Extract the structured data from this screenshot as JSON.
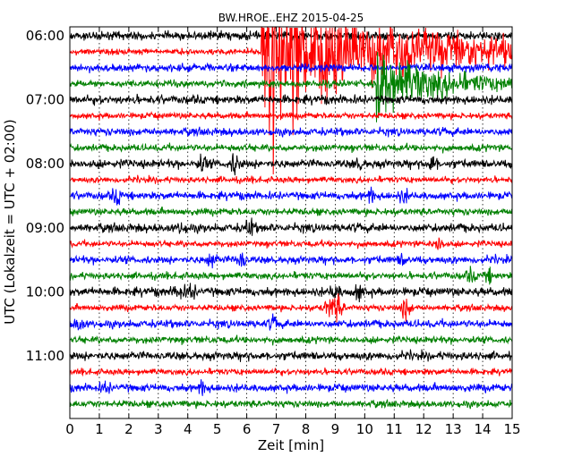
{
  "chart_data": {
    "type": "line",
    "title": "BW.HROE..EHZ 2015-04-25",
    "xlabel": "Zeit  [min]",
    "ylabel": "UTC (Lokalzeit = UTC + 02:00)",
    "xlim": [
      0,
      15
    ],
    "x_ticks": [
      "0",
      "1",
      "2",
      "3",
      "4",
      "5",
      "6",
      "7",
      "8",
      "9",
      "10",
      "11",
      "12",
      "13",
      "14",
      "15"
    ],
    "y_ticks": [
      "06:00",
      "07:00",
      "08:00",
      "09:00",
      "10:00",
      "11:00"
    ],
    "grid": true,
    "trace_interval_min": 15,
    "trace_colors": [
      "#000000",
      "#ff0000",
      "#0000ff",
      "#008000"
    ],
    "trace_start_times": [
      "06:00",
      "06:15",
      "06:30",
      "06:45",
      "07:00",
      "07:15",
      "07:30",
      "07:45",
      "08:00",
      "08:15",
      "08:30",
      "08:45",
      "09:00",
      "09:15",
      "09:30",
      "09:45",
      "10:00",
      "10:15",
      "10:30",
      "10:45",
      "11:00",
      "11:15",
      "11:30",
      "11:45"
    ],
    "events": [
      {
        "trace_start": "06:15",
        "x_start": 6.5,
        "x_end": 15,
        "peak_x": 7.2,
        "type": "main-shock"
      },
      {
        "trace_start": "06:45",
        "x_start": 10.4,
        "x_end": 15,
        "peak_x": 10.6,
        "type": "aftershock"
      }
    ]
  }
}
